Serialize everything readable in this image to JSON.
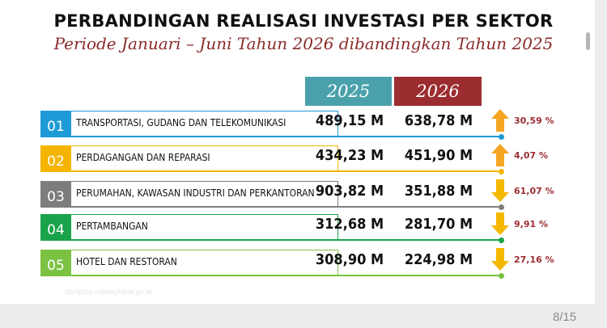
{
  "title": "PERBANDINGAN REALISASI INVESTASI PER SEKTOR",
  "subtitle": "Periode Januari – Juni Tahun 2026 dibandingkan Tahun 2025",
  "columns": {
    "year_a": "2025",
    "year_b": "2026"
  },
  "colors": {
    "year_a": "#4aa1ab",
    "year_b": "#9b2d30",
    "arrow_up": "#f5a623",
    "arrow_down": "#f5b800",
    "percent_text": "#9b2d30"
  },
  "rows": [
    {
      "number": "01",
      "label": "TRANSPORTASI, GUDANG DAN TELEKOMUNIKASI",
      "value_2025": "489,15 M",
      "value_2026": "638,78 M",
      "direction": "up",
      "change": "30,59 %",
      "color": "#1e9bd7"
    },
    {
      "number": "02",
      "label": "PERDAGANGAN DAN REPARASI",
      "value_2025": "434,23 M",
      "value_2026": "451,90 M",
      "direction": "up",
      "change": "4,07 %",
      "color": "#f4b400"
    },
    {
      "number": "03",
      "label": "PERUMAHAN, KAWASAN INDUSTRI DAN PERKANTORAN",
      "value_2025": "903,82 M",
      "value_2026": "351,88 M",
      "direction": "down",
      "change": "61,07 %",
      "color": "#7d7d7d"
    },
    {
      "number": "04",
      "label": "PERTAMBANGAN",
      "value_2025": "312,68 M",
      "value_2026": "281,70 M",
      "direction": "down",
      "change": "9,91 %",
      "color": "#1aa34a"
    },
    {
      "number": "05",
      "label": "HOTEL DAN RESTORAN",
      "value_2025": "308,90 M",
      "value_2026": "224,98 M",
      "direction": "down",
      "change": "27,16 %",
      "color": "#7cc242"
    }
  ],
  "watermark": "dpmptsp.mawaykarta.go.id",
  "page_indicator": "8/15"
}
